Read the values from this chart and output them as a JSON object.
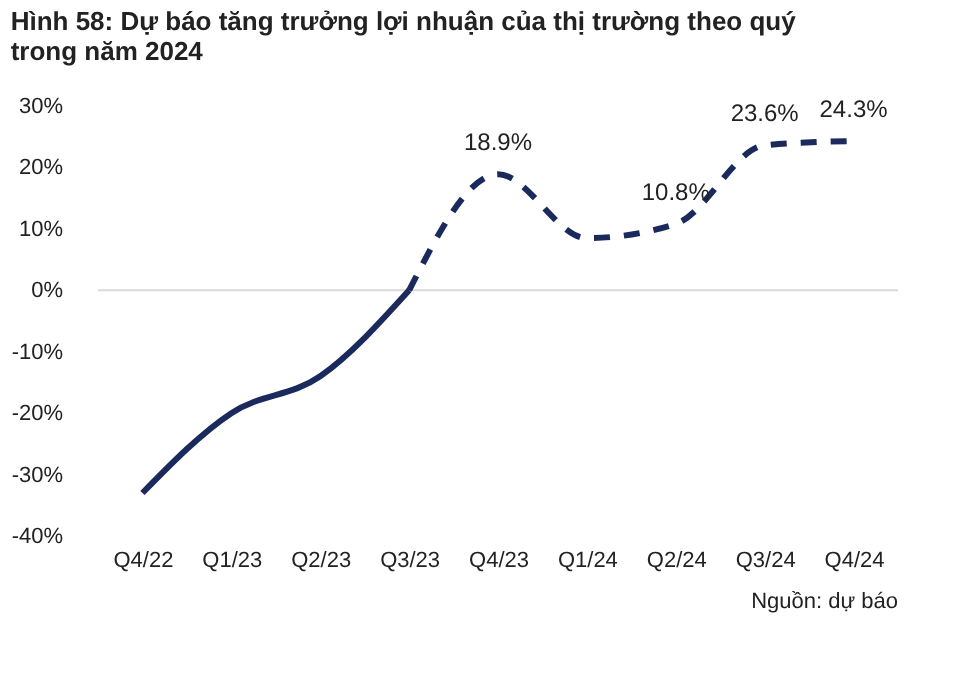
{
  "chart_data": {
    "type": "line",
    "title": "Hình 58: Dự báo tăng trưởng lợi nhuận của thị trường theo quý trong năm 2024",
    "categories": [
      "Q4/22",
      "Q1/23",
      "Q2/23",
      "Q3/23",
      "Q4/23",
      "Q1/24",
      "Q2/24",
      "Q3/24",
      "Q4/24"
    ],
    "series": [
      {
        "color": "#1b2a5c",
        "line_style": "solid",
        "values": [
          -33,
          -20,
          -14,
          0,
          null,
          null,
          null,
          null,
          null
        ]
      },
      {
        "color": "#1b2a5c",
        "line_style": "dashed",
        "values": [
          null,
          null,
          null,
          0,
          18.9,
          8.5,
          10.8,
          23.6,
          24.3
        ],
        "value_labels": [
          null,
          null,
          null,
          null,
          "18.9%",
          null,
          "10.8%",
          "23.6%",
          "24.3%"
        ]
      }
    ],
    "ylim": [
      -40,
      30
    ],
    "yticks": [
      {
        "value": -40,
        "label": "-40%"
      },
      {
        "value": -30,
        "label": "-30%"
      },
      {
        "value": -20,
        "label": "-20%"
      },
      {
        "value": -10,
        "label": "-10%"
      },
      {
        "value": 0,
        "label": "0%"
      },
      {
        "value": 10,
        "label": "10%"
      },
      {
        "value": 20,
        "label": "20%"
      },
      {
        "value": 30,
        "label": "30%"
      }
    ],
    "ref_lines": [
      {
        "axis": "y",
        "value": 0,
        "color": "#d9d9d9"
      }
    ],
    "grid": false,
    "marker": "none",
    "annotations": [
      "Nguồn: dự báo"
    ]
  }
}
